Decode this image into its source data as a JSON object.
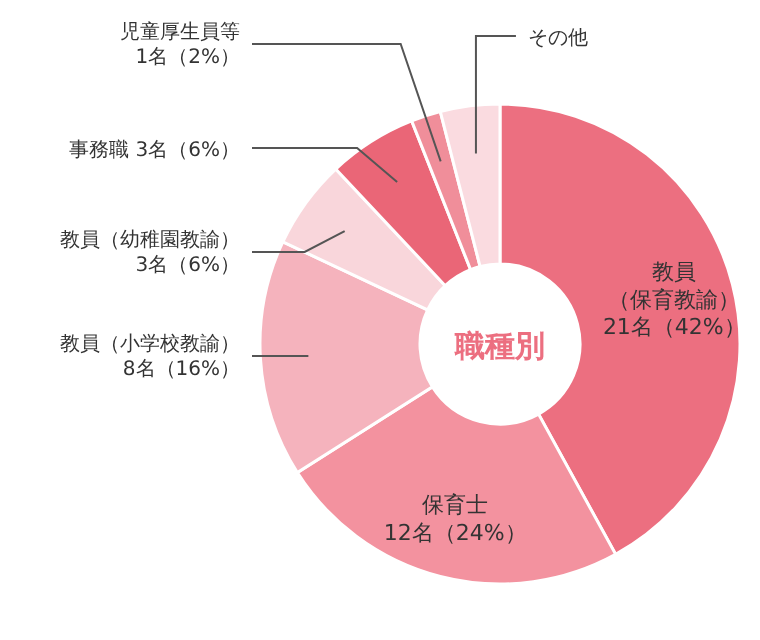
{
  "chart_data": {
    "type": "donut",
    "title": "職種別",
    "categories": [
      "教員（保育教諭）\n21名（42%）",
      "保育士\n12名（24%）",
      "教員（小学校教諭）\n8名（16%）",
      "教員（幼稚園教諭）\n3名（6%）",
      "事務職 3名（6%）",
      "児童厚生員等\n1名（2%）",
      "その他"
    ],
    "values": [
      42,
      24,
      16,
      6,
      6,
      2,
      4
    ],
    "colors": [
      "#ec6f80",
      "#f3929f",
      "#f5b3bd",
      "#f9d6db",
      "#ea6677",
      "#f08e9a",
      "#fadbe0"
    ]
  }
}
